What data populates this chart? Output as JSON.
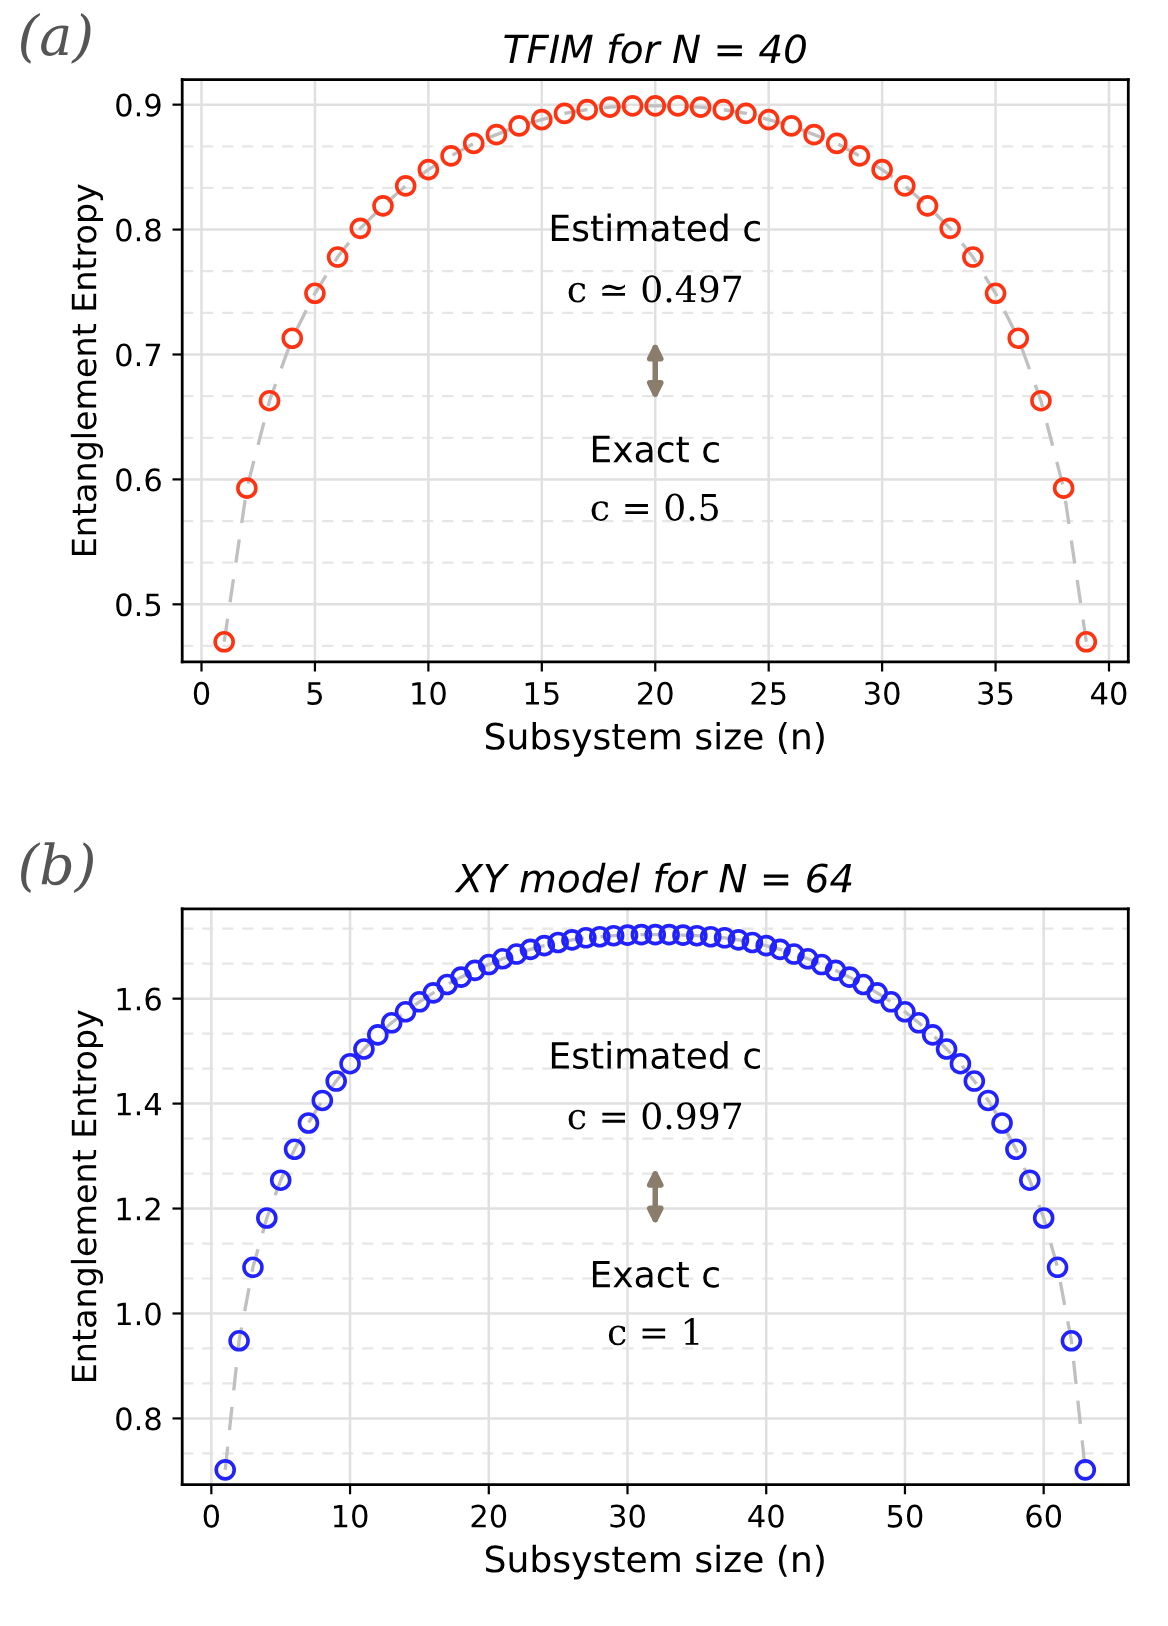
{
  "chart_data": [
    {
      "type": "scatter",
      "title": "TFIM for N = 40",
      "xlabel": "Subsystem size (n)",
      "ylabel": "Entanglement Entropy",
      "annotations": [
        "(a)",
        "Estimated c",
        "c ≃ 0.497",
        "Exact c",
        "c = 0.5"
      ],
      "xlim": [
        -0.85,
        40.85
      ],
      "ylim": [
        0.454,
        0.92
      ],
      "xticks": [
        0,
        5,
        10,
        15,
        20,
        25,
        30,
        35,
        40
      ],
      "yticks": [
        0.5,
        0.6,
        0.7,
        0.8,
        0.9
      ],
      "grid": true,
      "marker": "circle",
      "x": [
        1,
        2,
        3,
        4,
        5,
        6,
        7,
        8,
        9,
        10,
        11,
        12,
        13,
        14,
        15,
        16,
        17,
        18,
        19,
        20,
        21,
        22,
        23,
        24,
        25,
        26,
        27,
        28,
        29,
        30,
        31,
        32,
        33,
        34,
        35,
        36,
        37,
        38,
        39
      ],
      "series": [
        {
          "type": "line",
          "color": "#c0c0c0",
          "line_style": "dashed",
          "marker": "none",
          "values": [
            0.47,
            0.593,
            0.663,
            0.713,
            0.749,
            0.778,
            0.801,
            0.819,
            0.835,
            0.848,
            0.859,
            0.869,
            0.876,
            0.883,
            0.888,
            0.893,
            0.896,
            0.898,
            0.899,
            0.899,
            0.899,
            0.898,
            0.896,
            0.893,
            0.888,
            0.883,
            0.876,
            0.869,
            0.859,
            0.848,
            0.835,
            0.819,
            0.801,
            0.778,
            0.749,
            0.713,
            0.663,
            0.593,
            0.47
          ]
        },
        {
          "type": "scatter",
          "color": "#ff3311",
          "values": [
            0.47,
            0.593,
            0.663,
            0.713,
            0.749,
            0.778,
            0.801,
            0.819,
            0.835,
            0.848,
            0.859,
            0.869,
            0.876,
            0.883,
            0.888,
            0.893,
            0.896,
            0.898,
            0.899,
            0.899,
            0.899,
            0.898,
            0.896,
            0.893,
            0.888,
            0.883,
            0.876,
            0.869,
            0.859,
            0.848,
            0.835,
            0.819,
            0.801,
            0.778,
            0.749,
            0.713,
            0.663,
            0.593,
            0.47
          ]
        }
      ]
    },
    {
      "type": "scatter",
      "title": "XY model for N = 64",
      "xlabel": "Subsystem size (n)",
      "ylabel": "Entanglement Entropy",
      "annotations": [
        "(b)",
        "Estimated c",
        "c = 0.997",
        "Exact c",
        "c = 1"
      ],
      "xlim": [
        -2.1,
        66.1
      ],
      "ylim": [
        0.674,
        1.771
      ],
      "xticks": [
        0,
        10,
        20,
        30,
        40,
        50,
        60
      ],
      "yticks": [
        {
          "value": 0.8,
          "label": "0.8"
        },
        {
          "value": 1.0,
          "label": "1.0"
        },
        {
          "value": 1.2,
          "label": "1.2"
        },
        {
          "value": 1.4,
          "label": "1.4"
        },
        {
          "value": 1.6,
          "label": "1.6"
        }
      ],
      "grid": true,
      "marker": "circle",
      "x": [
        1,
        2,
        3,
        4,
        5,
        6,
        7,
        8,
        9,
        10,
        11,
        12,
        13,
        14,
        15,
        16,
        17,
        18,
        19,
        20,
        21,
        22,
        23,
        24,
        25,
        26,
        27,
        28,
        29,
        30,
        31,
        32,
        33,
        34,
        35,
        36,
        37,
        38,
        39,
        40,
        41,
        42,
        43,
        44,
        45,
        46,
        47,
        48,
        49,
        50,
        51,
        52,
        53,
        54,
        55,
        56,
        57,
        58,
        59,
        60,
        61,
        62,
        63
      ],
      "series": [
        {
          "type": "line",
          "color": "#c0c0c0",
          "line_style": "dashed",
          "marker": "none",
          "values": [
            0.702,
            0.948,
            1.088,
            1.182,
            1.254,
            1.313,
            1.363,
            1.406,
            1.443,
            1.476,
            1.504,
            1.531,
            1.554,
            1.575,
            1.594,
            1.611,
            1.627,
            1.641,
            1.654,
            1.665,
            1.676,
            1.685,
            1.694,
            1.701,
            1.707,
            1.712,
            1.716,
            1.718,
            1.72,
            1.721,
            1.722,
            1.722,
            1.722,
            1.721,
            1.72,
            1.718,
            1.716,
            1.712,
            1.707,
            1.701,
            1.694,
            1.685,
            1.676,
            1.665,
            1.654,
            1.641,
            1.627,
            1.611,
            1.594,
            1.575,
            1.554,
            1.531,
            1.504,
            1.476,
            1.443,
            1.406,
            1.363,
            1.313,
            1.254,
            1.182,
            1.088,
            0.948,
            0.702
          ]
        },
        {
          "type": "scatter",
          "color": "#2222ff",
          "values": [
            0.702,
            0.948,
            1.088,
            1.182,
            1.254,
            1.313,
            1.363,
            1.406,
            1.443,
            1.476,
            1.504,
            1.531,
            1.554,
            1.575,
            1.594,
            1.611,
            1.627,
            1.641,
            1.654,
            1.665,
            1.676,
            1.685,
            1.694,
            1.701,
            1.707,
            1.712,
            1.716,
            1.718,
            1.72,
            1.721,
            1.722,
            1.722,
            1.722,
            1.721,
            1.72,
            1.718,
            1.716,
            1.712,
            1.707,
            1.701,
            1.694,
            1.685,
            1.676,
            1.665,
            1.654,
            1.641,
            1.627,
            1.611,
            1.594,
            1.575,
            1.554,
            1.531,
            1.504,
            1.476,
            1.443,
            1.406,
            1.363,
            1.313,
            1.254,
            1.182,
            1.088,
            0.948,
            0.702
          ]
        }
      ]
    }
  ]
}
